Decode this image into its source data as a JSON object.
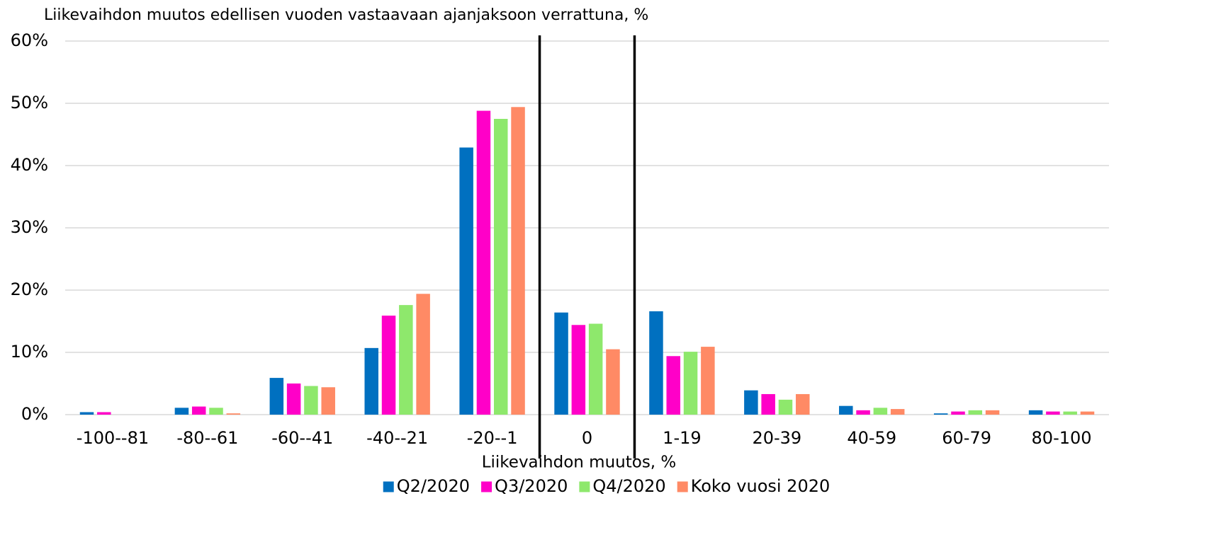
{
  "chart_data": {
    "type": "bar",
    "title": "Liikevaihdon muutos edellisen vuoden vastaavaan ajanjaksoon verrattuna, %",
    "x_label": "Liikevaihdon muutos, %",
    "categories": [
      "-100--81",
      "-80--61",
      "-60--41",
      "-40--21",
      "-20--1",
      "0",
      "1-19",
      "20-39",
      "40-59",
      "60-79",
      "80-100"
    ],
    "series": [
      {
        "name": "Q2/2020",
        "color": "#0070c0",
        "values": [
          0.4,
          1.1,
          5.9,
          10.7,
          42.9,
          16.4,
          16.6,
          3.9,
          1.4,
          0.2,
          0.7
        ]
      },
      {
        "name": "Q3/2020",
        "color": "#ff00c8",
        "values": [
          0.4,
          1.3,
          5.0,
          15.9,
          48.8,
          14.4,
          9.4,
          3.3,
          0.7,
          0.5,
          0.5
        ]
      },
      {
        "name": "Q4/2020",
        "color": "#8ee86c",
        "values": [
          0,
          1.1,
          4.6,
          17.6,
          47.5,
          14.6,
          10.1,
          2.4,
          1.1,
          0.7,
          0.5
        ]
      },
      {
        "name": "Koko vuosi 2020",
        "color": "#ff8a65",
        "values": [
          0,
          0.2,
          4.4,
          19.4,
          49.4,
          10.5,
          10.9,
          3.3,
          0.9,
          0.7,
          0.5
        ]
      }
    ],
    "ylim": [
      0,
      60
    ],
    "yticks": [
      {
        "value": 0,
        "label": "0%"
      },
      {
        "value": 10,
        "label": "10%"
      },
      {
        "value": 20,
        "label": "20%"
      },
      {
        "value": 30,
        "label": "30%"
      },
      {
        "value": 40,
        "label": "40%"
      },
      {
        "value": 50,
        "label": "50%"
      },
      {
        "value": 60,
        "label": "60%"
      }
    ],
    "grid": true,
    "legend": "bottom"
  }
}
